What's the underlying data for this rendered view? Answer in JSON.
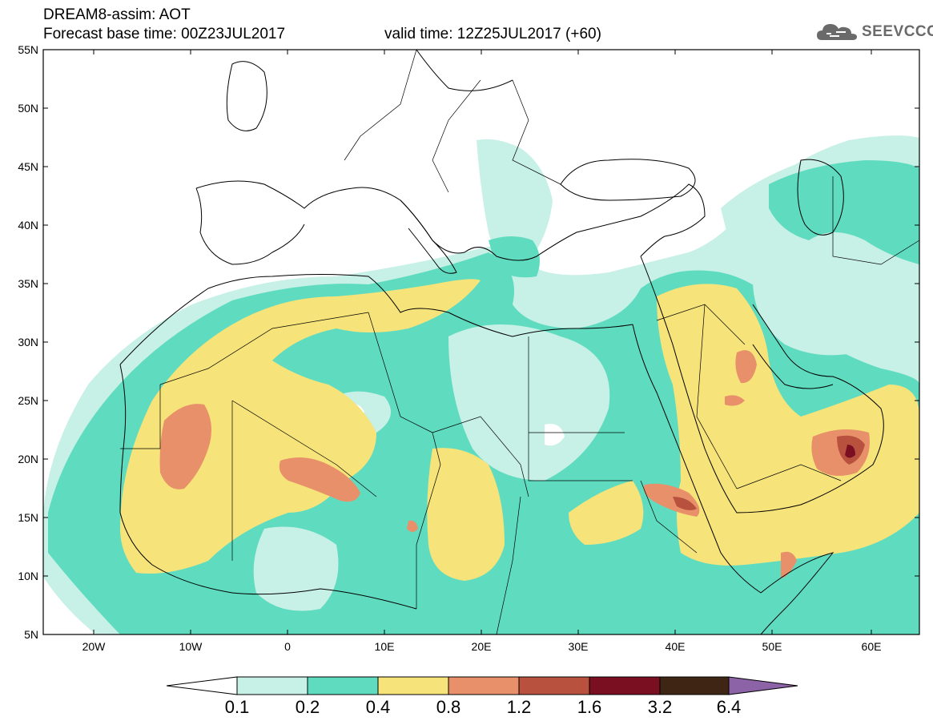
{
  "header": {
    "title": "DREAM8-assim: AOT",
    "base_time": "Forecast base time: 00Z23JUL2017",
    "valid_time": "valid time: 12Z25JUL2017 (+60)",
    "logo_text": "SEEVCCC"
  },
  "map": {
    "region": "North Africa / Mediterranean / Middle East",
    "lat_labels": [
      "55N",
      "50N",
      "45N",
      "40N",
      "35N",
      "30N",
      "25N",
      "20N",
      "15N",
      "10N",
      "5N"
    ],
    "lon_labels": [
      "20W",
      "10W",
      "0",
      "10E",
      "20E",
      "30E",
      "40E",
      "50E",
      "60E"
    ]
  },
  "colorbar": {
    "labels": [
      "0.1",
      "0.2",
      "0.4",
      "0.8",
      "1.2",
      "1.6",
      "3.2",
      "6.4"
    ],
    "colors": [
      "#ffffff",
      "#c7f0e6",
      "#5fdcc0",
      "#f6e37a",
      "#e8906a",
      "#b8523e",
      "#7a0f22",
      "#3f2614",
      "#8d63a8"
    ]
  },
  "colors": {
    "c1": "#c7f0e6",
    "c2": "#5fdcc0",
    "c3": "#f6e37a",
    "c4": "#e8906a",
    "c5": "#b8523e",
    "c6": "#7a0f22"
  }
}
